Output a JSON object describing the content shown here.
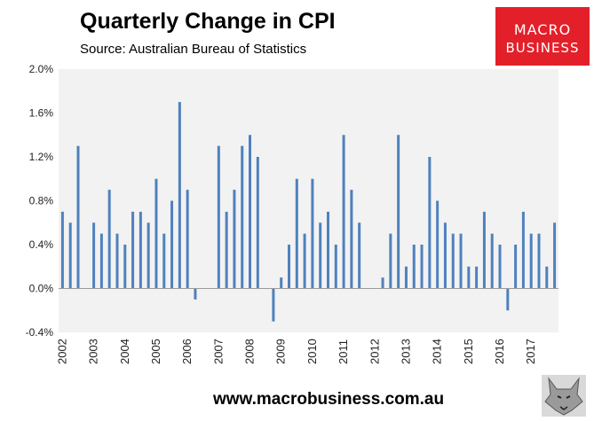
{
  "header": {
    "title": "Quarterly Change in CPI",
    "subtitle": "Source: Australian Bureau of Statistics"
  },
  "logo": {
    "line1": "MACRO",
    "line2": "BUSINESS",
    "color": "#e3202a"
  },
  "footer": {
    "url": "www.macrobusiness.com.au"
  },
  "colors": {
    "bar": "#4f81bd",
    "plot_bg": "#f2f2f2"
  },
  "chart_data": {
    "type": "bar",
    "title": "Quarterly Change in CPI",
    "subtitle": "Source: Australian Bureau of Statistics",
    "xlabel": "",
    "ylabel": "",
    "ylim": [
      -0.4,
      2.0
    ],
    "yticks": [
      "2.0%",
      "1.6%",
      "1.2%",
      "0.8%",
      "0.4%",
      "0.0%",
      "-0.4%"
    ],
    "year_labels": [
      "2002",
      "2003",
      "2004",
      "2005",
      "2006",
      "2007",
      "2008",
      "2009",
      "2010",
      "2011",
      "2012",
      "2013",
      "2014",
      "2015",
      "2016",
      "2017"
    ],
    "grid": false,
    "legend": "none",
    "values": [
      0.7,
      0.6,
      1.3,
      0,
      0.6,
      0.5,
      0.9,
      0.5,
      0.4,
      0.7,
      0.7,
      0.6,
      1.0,
      0.5,
      0.8,
      1.7,
      0.9,
      -0.1,
      0,
      0,
      1.3,
      0.7,
      0.9,
      1.3,
      1.4,
      1.2,
      0,
      -0.3,
      0.1,
      0.4,
      1.0,
      0.5,
      1.0,
      0.6,
      0.7,
      0.4,
      1.4,
      0.9,
      0.6,
      0,
      0,
      0.1,
      0.5,
      1.4,
      0.2,
      0.4,
      0.4,
      1.2,
      0.8,
      0.6,
      0.5,
      0.5,
      0.2,
      0.2,
      0.7,
      0.5,
      0.4,
      -0.2,
      0.4,
      0.7,
      0.5,
      0.5,
      0.2,
      0.6
    ]
  }
}
